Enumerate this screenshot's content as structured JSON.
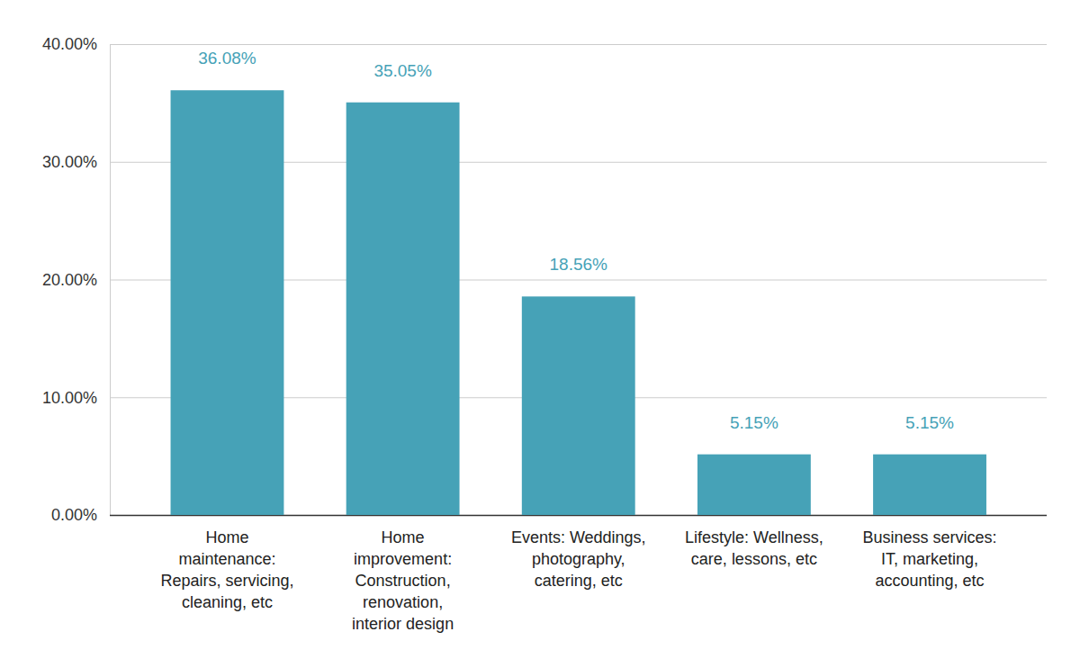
{
  "chart_data": {
    "type": "bar",
    "categories": [
      "Home\nmaintenance:\nRepairs, servicing,\ncleaning, etc",
      "Home\nimprovement:\nConstruction,\nrenovation,\ninterior design",
      "Events: Weddings,\nphotography,\ncatering, etc",
      "Lifestyle: Wellness,\ncare, lessons, etc",
      "Business services:\nIT, marketing,\naccounting, etc"
    ],
    "values": [
      36.08,
      35.05,
      18.56,
      5.15,
      5.15
    ],
    "value_labels": [
      "36.08%",
      "35.05%",
      "18.56%",
      "5.15%",
      "5.15%"
    ],
    "color": "#46a2b7",
    "ylim": [
      0,
      40
    ],
    "yticks": [
      {
        "value": 0,
        "label": "0.00%"
      },
      {
        "value": 10,
        "label": "10.00%"
      },
      {
        "value": 20,
        "label": "20.00%"
      },
      {
        "value": 30,
        "label": "30.00%"
      },
      {
        "value": 40,
        "label": "40.00%"
      }
    ],
    "grid": true,
    "data_labels": true
  }
}
